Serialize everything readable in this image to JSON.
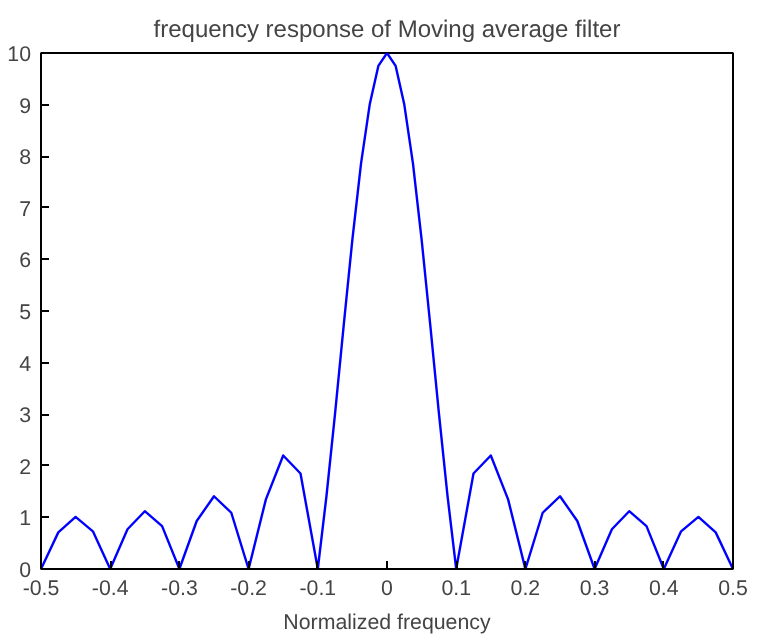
{
  "chart_data": {
    "type": "line",
    "title": "frequency response of Moving average filter",
    "xlabel": "Normalized frequency",
    "x": [
      -0.5,
      -0.475,
      -0.45,
      -0.425,
      -0.4,
      -0.375,
      -0.35,
      -0.325,
      -0.3,
      -0.275,
      -0.25,
      -0.225,
      -0.2,
      -0.175,
      -0.15,
      -0.125,
      -0.1,
      -0.0875,
      -0.075,
      -0.0625,
      -0.05,
      -0.0375,
      -0.025,
      -0.0125,
      0,
      0.0125,
      0.025,
      0.0375,
      0.05,
      0.0625,
      0.075,
      0.0875,
      0.1,
      0.125,
      0.15,
      0.175,
      0.2,
      0.225,
      0.25,
      0.275,
      0.3,
      0.325,
      0.35,
      0.375,
      0.4,
      0.425,
      0.45,
      0.475,
      0.5
    ],
    "series": [
      {
        "color": "#0000ff",
        "values": [
          0,
          0.71,
          1.01,
          0.73,
          0,
          0.77,
          1.12,
          0.83,
          0,
          0.93,
          1.41,
          1.09,
          0,
          1.35,
          2.2,
          1.85,
          0,
          1.41,
          3.02,
          4.73,
          6.39,
          7.86,
          9.0,
          9.75,
          10,
          9.75,
          9.0,
          7.86,
          6.39,
          4.73,
          3.02,
          1.41,
          0,
          1.85,
          2.2,
          1.35,
          0,
          1.09,
          1.41,
          0.93,
          0,
          0.77,
          1.12,
          0.83,
          0,
          0.73,
          1.01,
          0.71,
          0
        ]
      }
    ],
    "xlim": [
      -0.5,
      0.5
    ],
    "ylim": [
      0,
      10
    ],
    "xticks": [
      -0.5,
      -0.4,
      -0.3,
      -0.2,
      -0.1,
      0,
      0.1,
      0.2,
      0.3,
      0.4,
      0.5
    ],
    "yticks": [
      0,
      1,
      2,
      3,
      4,
      5,
      6,
      7,
      8,
      9,
      10
    ],
    "grid": false,
    "line_style": "solid"
  }
}
